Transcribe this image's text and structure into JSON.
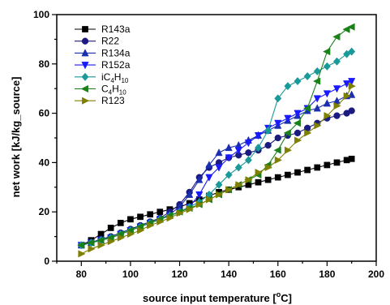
{
  "chart_data": {
    "type": "line",
    "xlabel": "source input temperature [°C]",
    "ylabel": "net work [kJ/kg_source]",
    "xlim": [
      70,
      200
    ],
    "ylim": [
      0,
      100
    ],
    "xticks": [
      "80",
      "100",
      "120",
      "140",
      "160",
      "180",
      "200"
    ],
    "yticks": [
      "0",
      "20",
      "40",
      "60",
      "80",
      "100"
    ],
    "xtick_values": [
      80,
      100,
      120,
      140,
      160,
      180,
      200
    ],
    "ytick_values": [
      0,
      20,
      40,
      60,
      80,
      100
    ],
    "grid": false,
    "legend_position": "top-left",
    "series": [
      {
        "name": "R143a",
        "color": "#000000",
        "marker": "square",
        "x": [
          80,
          84,
          88,
          92,
          96,
          100,
          104,
          108,
          112,
          116,
          120,
          124,
          128,
          132,
          136,
          140,
          144,
          148,
          152,
          156,
          160,
          164,
          168,
          172,
          176,
          180,
          184,
          188,
          190
        ],
        "y": [
          6.5,
          8.5,
          11,
          13.5,
          15.5,
          17,
          18,
          19,
          20,
          21,
          22,
          23.5,
          25,
          26.5,
          28,
          29,
          30,
          31,
          32,
          33,
          34,
          35,
          36,
          37,
          38,
          39,
          40,
          41,
          41.5
        ]
      },
      {
        "name": "R22",
        "color": "#1a1a80",
        "marker": "circle",
        "x": [
          80,
          84,
          88,
          92,
          96,
          100,
          104,
          108,
          112,
          116,
          120,
          124,
          128,
          132,
          136,
          140,
          144,
          148,
          152,
          156,
          160,
          164,
          168,
          172,
          176,
          180,
          184,
          188,
          190
        ],
        "y": [
          6.5,
          7.5,
          9,
          10,
          11.5,
          13,
          14.5,
          16,
          17.5,
          20,
          23,
          28,
          34,
          38,
          40,
          42,
          43,
          44,
          45,
          47,
          50,
          51,
          52,
          54,
          56,
          58,
          59,
          60,
          61
        ]
      },
      {
        "name": "R134a",
        "color": "#1a2eb0",
        "marker": "triangle-up",
        "x": [
          80,
          84,
          88,
          92,
          96,
          100,
          104,
          108,
          112,
          116,
          120,
          124,
          128,
          132,
          136,
          140,
          144,
          148,
          152,
          156,
          160,
          164,
          168,
          172,
          176,
          180,
          184,
          188,
          190
        ],
        "y": [
          6.5,
          7.5,
          8.5,
          9.5,
          11,
          12.5,
          14,
          15.5,
          17,
          19,
          22,
          27,
          33,
          39,
          44,
          46,
          47,
          49,
          51,
          53,
          55,
          57,
          59,
          61,
          62,
          64,
          65,
          67,
          67.5
        ]
      },
      {
        "name": "R152a",
        "color": "#1a1aff",
        "marker": "triangle-down",
        "x": [
          80,
          84,
          88,
          92,
          96,
          100,
          104,
          108,
          112,
          116,
          120,
          124,
          128,
          132,
          136,
          140,
          144,
          148,
          152,
          156,
          160,
          164,
          168,
          172,
          176,
          180,
          184,
          188,
          190
        ],
        "y": [
          6.5,
          7.5,
          8.5,
          9.5,
          11,
          12.5,
          14,
          15.5,
          17,
          18.5,
          20,
          22,
          27,
          34,
          38,
          42,
          45,
          48,
          51,
          54,
          56,
          58,
          60,
          62,
          66,
          68,
          70,
          72,
          73
        ]
      },
      {
        "name": "iC4H10",
        "color": "#1a9999",
        "marker": "diamond",
        "x": [
          80,
          84,
          88,
          92,
          96,
          100,
          104,
          108,
          112,
          116,
          120,
          124,
          128,
          132,
          136,
          140,
          144,
          148,
          152,
          156,
          160,
          164,
          168,
          172,
          176,
          180,
          184,
          188,
          190
        ],
        "y": [
          6.5,
          7.5,
          8.5,
          9.5,
          11,
          12.5,
          14,
          15.5,
          17,
          18.5,
          20,
          22,
          24,
          27,
          31,
          35,
          38,
          41,
          46,
          53,
          66,
          71,
          73,
          75,
          77,
          79,
          81,
          84,
          85
        ]
      },
      {
        "name": "C4H10",
        "color": "#1a801a",
        "marker": "triangle-left",
        "x": [
          80,
          84,
          88,
          92,
          96,
          100,
          104,
          108,
          112,
          116,
          120,
          124,
          128,
          132,
          136,
          140,
          144,
          148,
          152,
          156,
          160,
          164,
          168,
          172,
          176,
          180,
          184,
          188,
          190
        ],
        "y": [
          6.5,
          7.5,
          8.5,
          9.5,
          11,
          12.5,
          14,
          15.5,
          17,
          18.5,
          20,
          21.5,
          23,
          25,
          27,
          29,
          31,
          33,
          35,
          39,
          45,
          52,
          56,
          62,
          73,
          85,
          91,
          94,
          95
        ]
      },
      {
        "name": "R123",
        "color": "#808000",
        "marker": "triangle-right",
        "x": [
          80,
          84,
          88,
          92,
          96,
          100,
          104,
          108,
          112,
          116,
          120,
          124,
          128,
          132,
          136,
          140,
          144,
          148,
          152,
          156,
          160,
          164,
          168,
          172,
          176,
          180,
          184,
          188,
          190
        ],
        "y": [
          3,
          5,
          6.5,
          8,
          9.5,
          11,
          12.5,
          14.5,
          16,
          17.5,
          19.5,
          21,
          23,
          25,
          27,
          29,
          31,
          33,
          36,
          38,
          41,
          45,
          49,
          52,
          55,
          59,
          63,
          67,
          71
        ]
      }
    ]
  },
  "legend": {
    "labels": [
      {
        "main": "R143a",
        "sub": "",
        "tail": "",
        "sub2": ""
      },
      {
        "main": "R22",
        "sub": "",
        "tail": "",
        "sub2": ""
      },
      {
        "main": "R134a",
        "sub": "",
        "tail": "",
        "sub2": ""
      },
      {
        "main": "R152a",
        "sub": "",
        "tail": "",
        "sub2": ""
      },
      {
        "main": "iC",
        "sub": "4",
        "tail": "H",
        "sub2": "10"
      },
      {
        "main": "C",
        "sub": "4",
        "tail": "H",
        "sub2": "10"
      },
      {
        "main": "R123",
        "sub": "",
        "tail": "",
        "sub2": ""
      }
    ]
  },
  "axis_titles": {
    "x_main": "source input temperature [",
    "x_sup": "o",
    "x_tail": "C]",
    "y": "net work [kJ/kg_source]"
  }
}
